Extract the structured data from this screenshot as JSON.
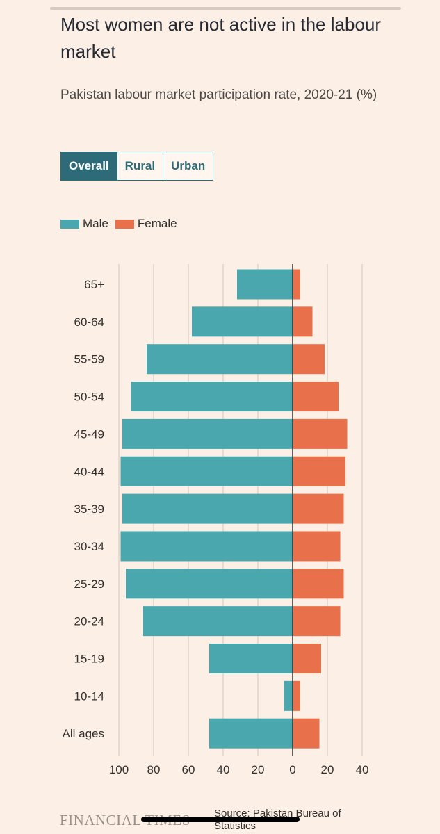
{
  "header": {
    "title": "Most women are not active in the labour market",
    "subtitle": "Pakistan labour market participation rate, 2020-21 (%)"
  },
  "tabs": [
    {
      "label": "Overall",
      "active": true
    },
    {
      "label": "Rural",
      "active": false
    },
    {
      "label": "Urban",
      "active": false
    }
  ],
  "legend": [
    {
      "label": "Male",
      "color": "#4aa7ae"
    },
    {
      "label": "Female",
      "color": "#e8704a"
    }
  ],
  "chart_data": {
    "type": "bar",
    "orientation": "horizontal-diverging",
    "categories": [
      "65+",
      "60-64",
      "55-59",
      "50-54",
      "45-49",
      "40-44",
      "35-39",
      "30-34",
      "25-29",
      "20-24",
      "15-19",
      "10-14",
      "All ages"
    ],
    "series": [
      {
        "name": "Male",
        "color": "#4aa7ae",
        "direction": "left",
        "values": [
          32,
          58,
          84,
          93,
          98,
          99,
          98,
          99,
          96,
          86,
          48,
          5,
          48
        ]
      },
      {
        "name": "Female",
        "color": "#e8704a",
        "direction": "right",
        "values": [
          4,
          11,
          18,
          26,
          31,
          30,
          29,
          27,
          29,
          27,
          16,
          4,
          15
        ]
      }
    ],
    "xticks": [
      "100",
      "80",
      "60",
      "40",
      "20",
      "0",
      "20",
      "40"
    ],
    "xlim_male": [
      0,
      100
    ],
    "xlim_female": [
      0,
      40
    ],
    "grid": true
  },
  "footer": {
    "logo": "FINANCIAL TIMES",
    "source": "Source: Pakistan Bureau of Statistics"
  }
}
